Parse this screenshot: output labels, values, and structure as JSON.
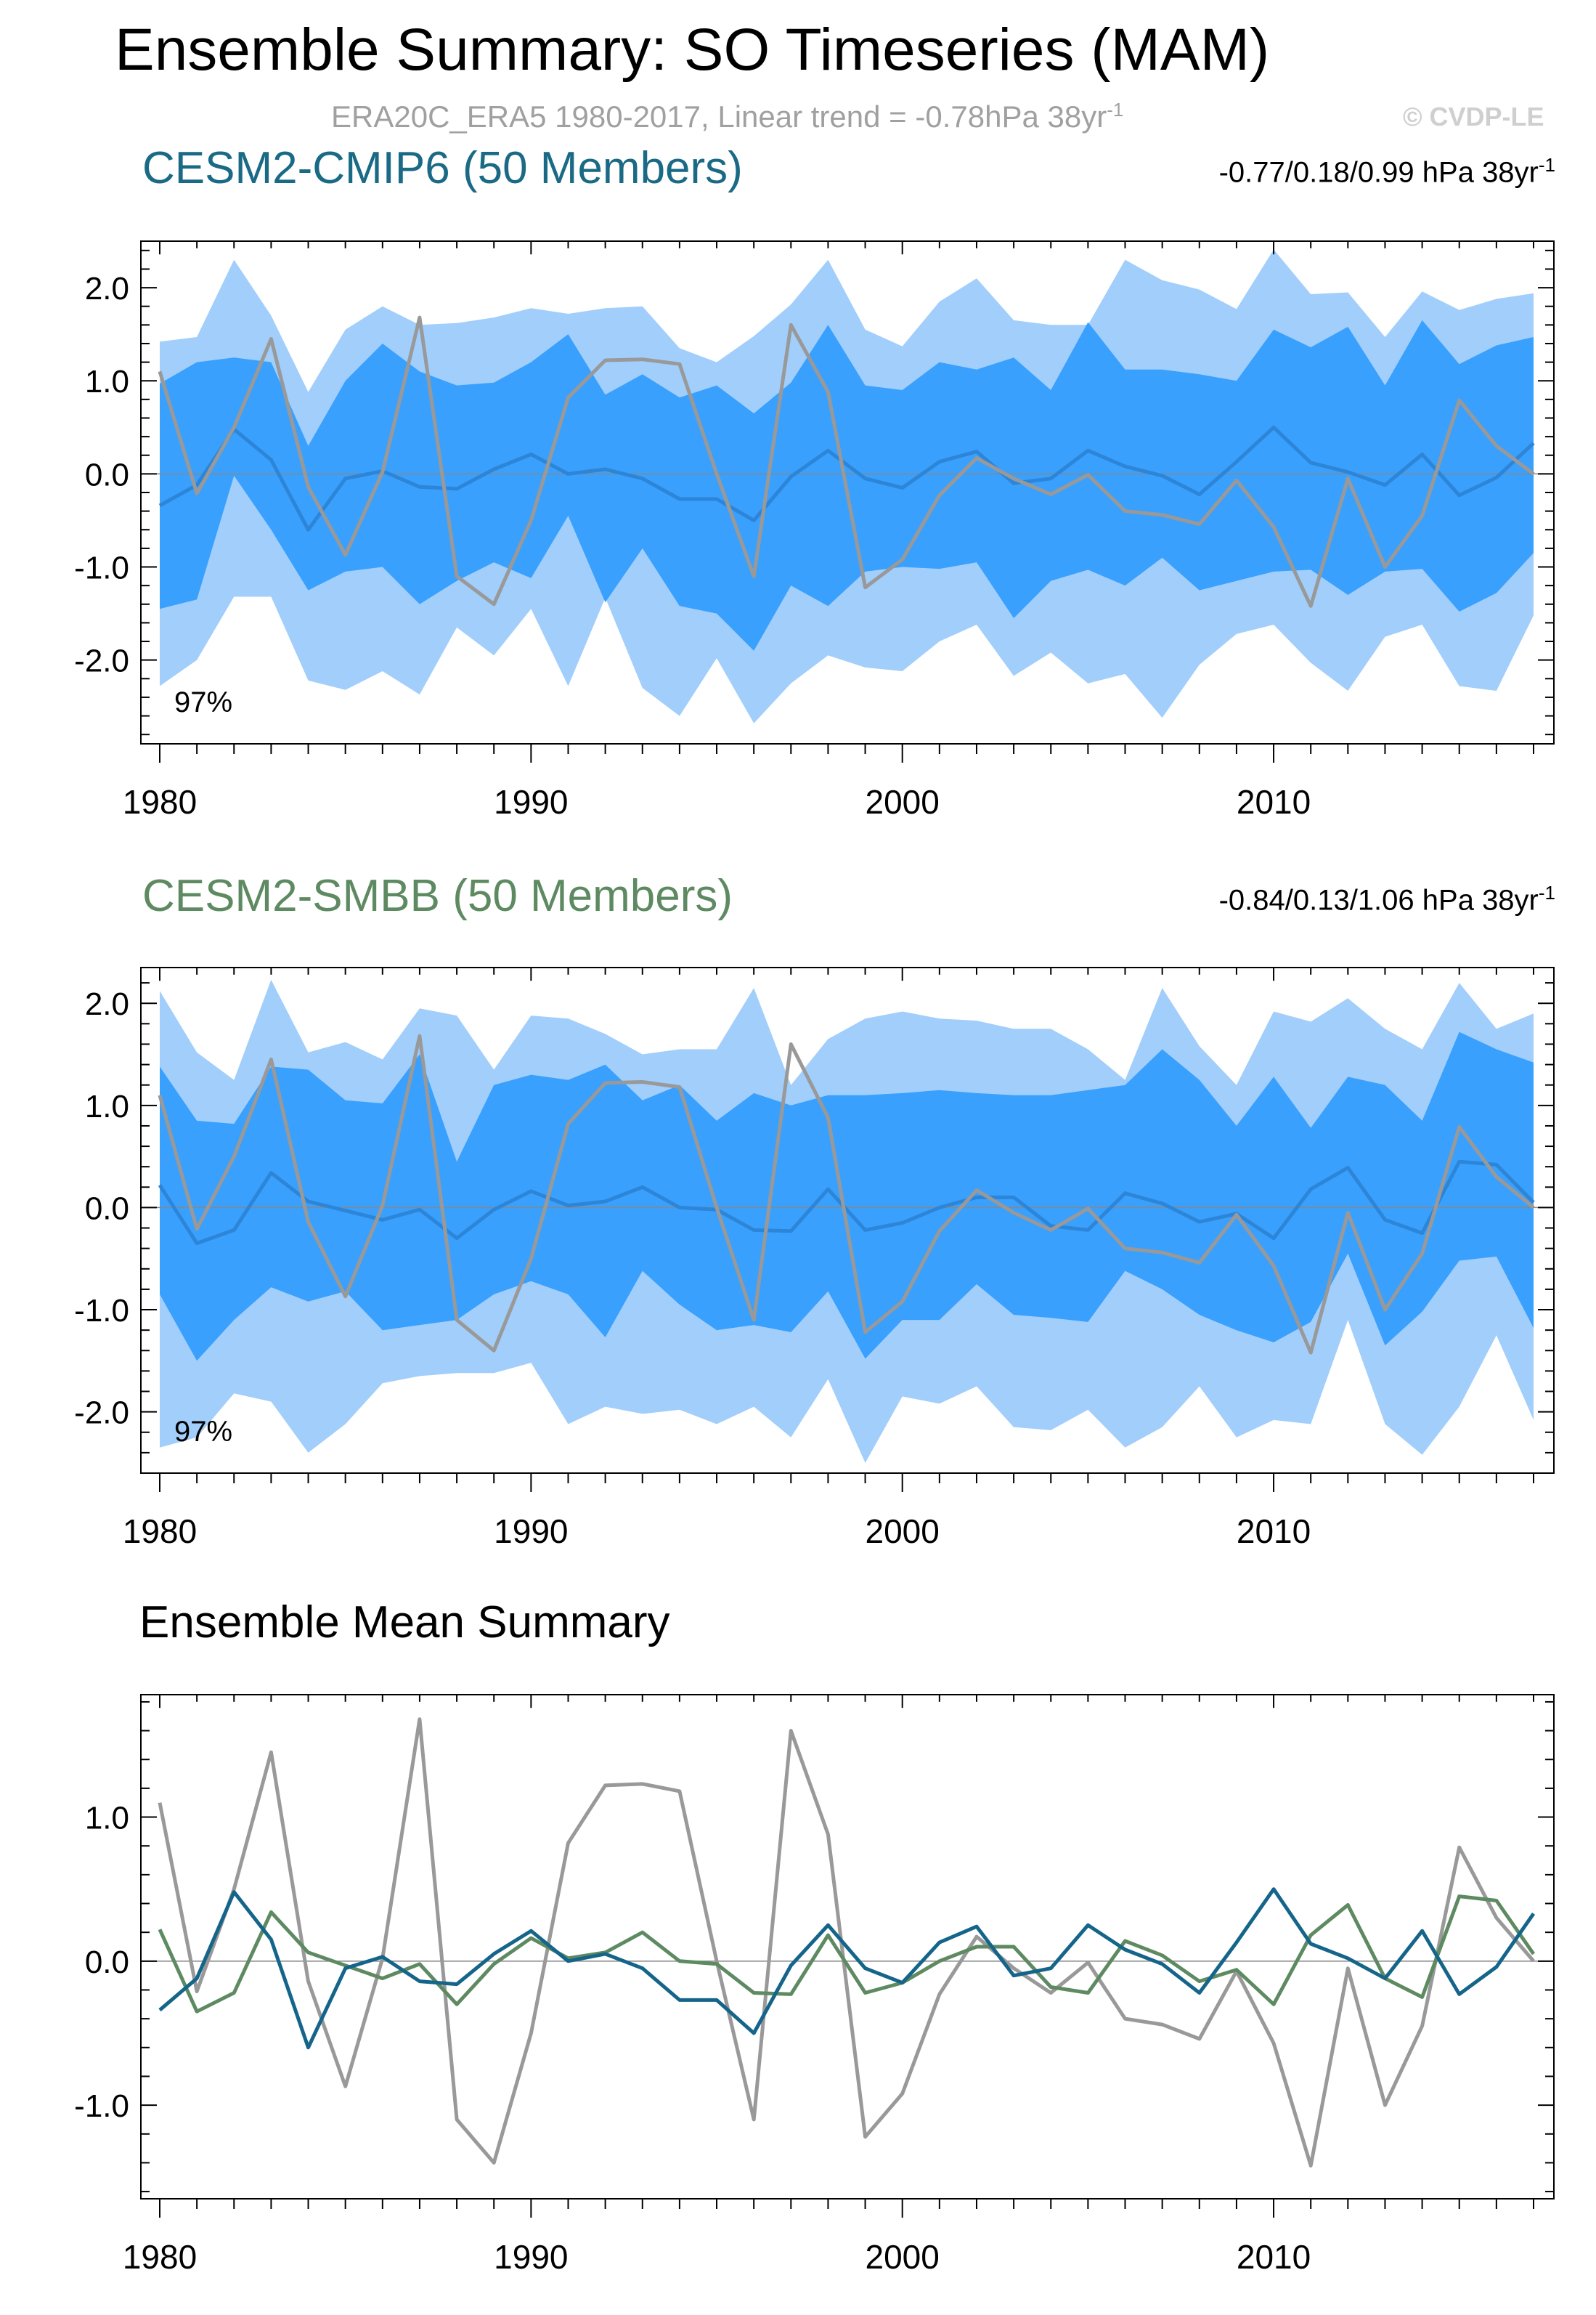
{
  "title": "Ensemble Summary: SO Timeseries (MAM)",
  "subtitle": {
    "text": "ERA20C_ERA5 1980-2017, Linear trend = -0.78hPa 38yr",
    "superscript": "-1"
  },
  "watermark": "© CVDP-LE",
  "colors": {
    "outer_band": "#a1cefb",
    "inner_band": "#39a0fd",
    "ensemble_mean_line": "#2d85d8",
    "observations": "#999999",
    "cmip6": "#15658a",
    "smbb": "#5e8a62"
  },
  "panels": {
    "cmip6": {
      "title": "CESM2-CMIP6 (50 Members)",
      "stats": "-0.77/0.18/0.99 hPa 38yr",
      "stats_sup": "-1",
      "percent_label": "97%"
    },
    "smbb": {
      "title": "CESM2-SMBB (50 Members)",
      "stats": "-0.84/0.13/1.06 hPa 38yr",
      "stats_sup": "-1",
      "percent_label": "97%"
    },
    "mean": {
      "title": "Ensemble Mean Summary"
    }
  },
  "chart_data": [
    {
      "type": "area",
      "name": "CESM2-CMIP6 (50 Members)",
      "x": [
        1980,
        1981,
        1982,
        1983,
        1984,
        1985,
        1986,
        1987,
        1988,
        1989,
        1990,
        1991,
        1992,
        1993,
        1994,
        1995,
        1996,
        1997,
        1998,
        1999,
        2000,
        2001,
        2002,
        2003,
        2004,
        2005,
        2006,
        2007,
        2008,
        2009,
        2010,
        2011,
        2012,
        2013,
        2014,
        2015,
        2016,
        2017
      ],
      "xlim": [
        1980,
        2017
      ],
      "xticks": [
        1980,
        1990,
        2000,
        2010
      ],
      "ylim": [
        -2.9,
        2.5
      ],
      "yticks": [
        -2.0,
        -1.0,
        0.0,
        1.0,
        2.0
      ],
      "ytick_labels": [
        "-2.0",
        "-1.0",
        "0.0",
        "1.0",
        "2.0"
      ],
      "series": [
        {
          "name": "outer_upper",
          "values": [
            1.42,
            1.47,
            2.3,
            1.7,
            0.88,
            1.55,
            1.8,
            1.6,
            1.62,
            1.68,
            1.78,
            1.72,
            1.78,
            1.8,
            1.35,
            1.2,
            1.48,
            1.82,
            2.3,
            1.55,
            1.37,
            1.85,
            2.1,
            1.65,
            1.6,
            1.6,
            2.3,
            2.08,
            1.98,
            1.77,
            2.41,
            1.93,
            1.95,
            1.47,
            1.96,
            1.76,
            1.88,
            1.94
          ]
        },
        {
          "name": "inner_upper",
          "values": [
            0.97,
            1.2,
            1.25,
            1.2,
            0.3,
            1.0,
            1.4,
            1.1,
            0.95,
            0.98,
            1.2,
            1.5,
            0.85,
            1.07,
            0.82,
            0.95,
            0.65,
            0.98,
            1.6,
            0.95,
            0.9,
            1.2,
            1.12,
            1.25,
            0.9,
            1.63,
            1.12,
            1.12,
            1.07,
            1.0,
            1.55,
            1.36,
            1.58,
            0.95,
            1.65,
            1.18,
            1.38,
            1.47
          ]
        },
        {
          "name": "ensemble_mean",
          "values": [
            -0.34,
            -0.12,
            0.48,
            0.15,
            -0.6,
            -0.05,
            0.03,
            -0.14,
            -0.16,
            0.05,
            0.21,
            0.0,
            0.05,
            -0.05,
            -0.27,
            -0.27,
            -0.5,
            -0.03,
            0.25,
            -0.05,
            -0.15,
            0.13,
            0.24,
            -0.1,
            -0.05,
            0.25,
            0.08,
            -0.02,
            -0.22,
            0.13,
            0.5,
            0.12,
            0.02,
            -0.12,
            0.21,
            -0.23,
            -0.04,
            0.33
          ]
        },
        {
          "name": "inner_lower",
          "values": [
            -1.45,
            -1.35,
            -0.02,
            -0.6,
            -1.25,
            -1.05,
            -1.0,
            -1.4,
            -1.15,
            -0.95,
            -1.12,
            -0.45,
            -1.38,
            -0.8,
            -1.42,
            -1.5,
            -1.9,
            -1.2,
            -1.42,
            -1.05,
            -1.0,
            -1.02,
            -0.95,
            -1.55,
            -1.15,
            -1.03,
            -1.2,
            -0.9,
            -1.25,
            -1.15,
            -1.05,
            -1.03,
            -1.3,
            -1.05,
            -1.02,
            -1.48,
            -1.28,
            -0.85
          ]
        },
        {
          "name": "outer_lower",
          "values": [
            -2.28,
            -2.0,
            -1.32,
            -1.32,
            -2.22,
            -2.32,
            -2.12,
            -2.37,
            -1.65,
            -1.95,
            -1.45,
            -2.28,
            -1.33,
            -2.3,
            -2.6,
            -1.98,
            -2.68,
            -2.25,
            -1.95,
            -2.08,
            -2.12,
            -1.8,
            -1.62,
            -2.17,
            -1.92,
            -2.25,
            -2.15,
            -2.62,
            -2.05,
            -1.72,
            -1.62,
            -2.03,
            -2.33,
            -1.75,
            -1.62,
            -2.28,
            -2.33,
            -1.52
          ]
        },
        {
          "name": "observations",
          "values": [
            1.1,
            -0.21,
            0.5,
            1.45,
            -0.14,
            -0.87,
            0.02,
            1.68,
            -1.1,
            -1.4,
            -0.5,
            0.82,
            1.22,
            1.23,
            1.18,
            0.0,
            -1.1,
            1.6,
            0.88,
            -1.22,
            -0.92,
            -0.23,
            0.17,
            -0.05,
            -0.22,
            -0.01,
            -0.4,
            -0.44,
            -0.54,
            -0.07,
            -0.57,
            -1.42,
            -0.05,
            -1.0,
            -0.45,
            0.79,
            0.3,
            0.0
          ]
        }
      ]
    },
    {
      "type": "area",
      "name": "CESM2-SMBB (50 Members)",
      "x": [
        1980,
        1981,
        1982,
        1983,
        1984,
        1985,
        1986,
        1987,
        1988,
        1989,
        1990,
        1991,
        1992,
        1993,
        1994,
        1995,
        1996,
        1997,
        1998,
        1999,
        2000,
        2001,
        2002,
        2003,
        2004,
        2005,
        2006,
        2007,
        2008,
        2009,
        2010,
        2011,
        2012,
        2013,
        2014,
        2015,
        2016,
        2017
      ],
      "xlim": [
        1980,
        2017
      ],
      "xticks": [
        1980,
        1990,
        2000,
        2010
      ],
      "ylim": [
        -2.6,
        2.35
      ],
      "yticks": [
        -2.0,
        -1.0,
        0.0,
        1.0,
        2.0
      ],
      "ytick_labels": [
        "-2.0",
        "-1.0",
        "0.0",
        "1.0",
        "2.0"
      ],
      "series": [
        {
          "name": "outer_upper",
          "values": [
            2.12,
            1.52,
            1.25,
            2.23,
            1.52,
            1.62,
            1.45,
            1.95,
            1.88,
            1.35,
            1.88,
            1.85,
            1.7,
            1.5,
            1.55,
            1.55,
            2.15,
            1.2,
            1.65,
            1.85,
            1.92,
            1.85,
            1.83,
            1.75,
            1.75,
            1.55,
            1.25,
            2.15,
            1.58,
            1.2,
            1.92,
            1.82,
            2.05,
            1.75,
            1.55,
            2.2,
            1.75,
            1.9
          ]
        },
        {
          "name": "inner_upper",
          "values": [
            1.38,
            0.85,
            0.82,
            1.38,
            1.35,
            1.05,
            1.02,
            1.5,
            0.45,
            1.2,
            1.3,
            1.25,
            1.4,
            1.05,
            1.2,
            0.85,
            1.12,
            1.0,
            1.1,
            1.1,
            1.12,
            1.15,
            1.12,
            1.1,
            1.1,
            1.15,
            1.2,
            1.55,
            1.25,
            0.8,
            1.28,
            0.78,
            1.28,
            1.2,
            0.85,
            1.72,
            1.55,
            1.42
          ]
        },
        {
          "name": "ensemble_mean",
          "values": [
            0.22,
            -0.35,
            -0.22,
            0.34,
            0.06,
            -0.03,
            -0.12,
            -0.02,
            -0.3,
            -0.02,
            0.16,
            0.02,
            0.06,
            0.2,
            0.0,
            -0.02,
            -0.22,
            -0.23,
            0.18,
            -0.22,
            -0.15,
            0.0,
            0.1,
            0.1,
            -0.18,
            -0.22,
            0.14,
            0.04,
            -0.14,
            -0.06,
            -0.3,
            0.18,
            0.39,
            -0.12,
            -0.25,
            0.45,
            0.42,
            0.05
          ]
        },
        {
          "name": "inner_lower",
          "values": [
            -0.85,
            -1.5,
            -1.1,
            -0.78,
            -0.92,
            -0.82,
            -1.2,
            -1.15,
            -1.1,
            -0.85,
            -0.72,
            -0.85,
            -1.27,
            -0.62,
            -0.95,
            -1.2,
            -1.15,
            -1.22,
            -0.82,
            -1.48,
            -1.1,
            -1.1,
            -0.75,
            -1.05,
            -1.08,
            -1.12,
            -0.62,
            -0.8,
            -1.05,
            -1.2,
            -1.32,
            -1.12,
            -0.45,
            -1.35,
            -1.02,
            -0.52,
            -0.48,
            -1.18
          ]
        },
        {
          "name": "outer_lower",
          "values": [
            -2.35,
            -2.25,
            -1.82,
            -1.9,
            -2.4,
            -2.12,
            -1.72,
            -1.65,
            -1.62,
            -1.62,
            -1.52,
            -2.12,
            -1.95,
            -2.02,
            -1.98,
            -2.12,
            -1.95,
            -2.25,
            -1.68,
            -2.5,
            -1.85,
            -1.92,
            -1.75,
            -2.15,
            -2.18,
            -1.98,
            -2.35,
            -2.15,
            -1.75,
            -2.25,
            -2.08,
            -2.12,
            -1.1,
            -2.12,
            -2.42,
            -1.95,
            -1.25,
            -2.08
          ]
        },
        {
          "name": "observations",
          "values": [
            1.1,
            -0.21,
            0.5,
            1.45,
            -0.14,
            -0.87,
            0.02,
            1.68,
            -1.1,
            -1.4,
            -0.5,
            0.82,
            1.22,
            1.23,
            1.18,
            0.0,
            -1.1,
            1.6,
            0.88,
            -1.22,
            -0.92,
            -0.23,
            0.17,
            -0.05,
            -0.22,
            -0.01,
            -0.4,
            -0.44,
            -0.54,
            -0.07,
            -0.57,
            -1.42,
            -0.05,
            -1.0,
            -0.45,
            0.79,
            0.3,
            0.0
          ]
        }
      ]
    },
    {
      "type": "line",
      "name": "Ensemble Mean Summary",
      "x": [
        1980,
        1981,
        1982,
        1983,
        1984,
        1985,
        1986,
        1987,
        1988,
        1989,
        1990,
        1991,
        1992,
        1993,
        1994,
        1995,
        1996,
        1997,
        1998,
        1999,
        2000,
        2001,
        2002,
        2003,
        2004,
        2005,
        2006,
        2007,
        2008,
        2009,
        2010,
        2011,
        2012,
        2013,
        2014,
        2015,
        2016,
        2017
      ],
      "xlim": [
        1980,
        2017
      ],
      "xticks": [
        1980,
        1990,
        2000,
        2010
      ],
      "ylim": [
        -1.65,
        1.85
      ],
      "yticks": [
        -1.0,
        0.0,
        1.0
      ],
      "ytick_labels": [
        "-1.0",
        "0.0",
        "1.0"
      ],
      "series": [
        {
          "name": "observations",
          "values": [
            1.1,
            -0.21,
            0.5,
            1.45,
            -0.14,
            -0.87,
            0.02,
            1.68,
            -1.1,
            -1.4,
            -0.5,
            0.82,
            1.22,
            1.23,
            1.18,
            0.0,
            -1.1,
            1.6,
            0.88,
            -1.22,
            -0.92,
            -0.23,
            0.17,
            -0.05,
            -0.22,
            -0.01,
            -0.4,
            -0.44,
            -0.54,
            -0.07,
            -0.57,
            -1.42,
            -0.05,
            -1.0,
            -0.45,
            0.79,
            0.3,
            0.0
          ]
        },
        {
          "name": "CESM2-SMBB",
          "values": [
            0.22,
            -0.35,
            -0.22,
            0.34,
            0.06,
            -0.03,
            -0.12,
            -0.02,
            -0.3,
            -0.02,
            0.16,
            0.02,
            0.06,
            0.2,
            0.0,
            -0.02,
            -0.22,
            -0.23,
            0.18,
            -0.22,
            -0.15,
            0.0,
            0.1,
            0.1,
            -0.18,
            -0.22,
            0.14,
            0.04,
            -0.14,
            -0.06,
            -0.3,
            0.18,
            0.39,
            -0.12,
            -0.25,
            0.45,
            0.42,
            0.05
          ]
        },
        {
          "name": "CESM2-CMIP6",
          "values": [
            -0.34,
            -0.12,
            0.48,
            0.15,
            -0.6,
            -0.05,
            0.03,
            -0.14,
            -0.16,
            0.05,
            0.21,
            0.0,
            0.05,
            -0.05,
            -0.27,
            -0.27,
            -0.5,
            -0.03,
            0.25,
            -0.05,
            -0.15,
            0.13,
            0.24,
            -0.1,
            -0.05,
            0.25,
            0.08,
            -0.02,
            -0.22,
            0.13,
            0.5,
            0.12,
            0.02,
            -0.12,
            0.21,
            -0.23,
            -0.04,
            0.33
          ]
        }
      ]
    }
  ]
}
